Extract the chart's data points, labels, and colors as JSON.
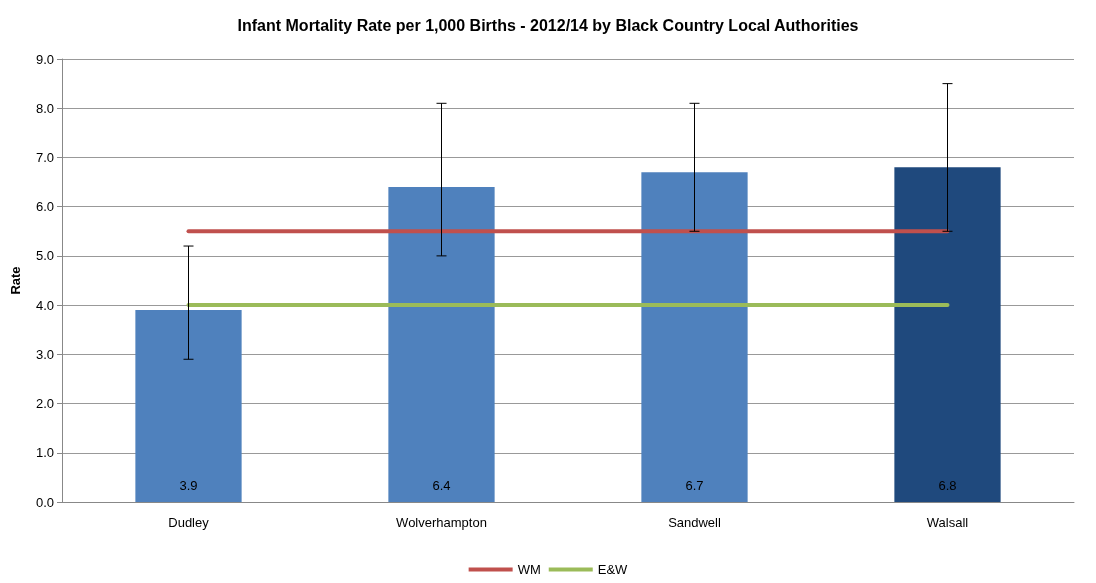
{
  "chart_data": {
    "type": "bar",
    "title": "Infant Mortality Rate per 1,000 Births - 2012/14 by Black Country Local Authorities",
    "ylabel": "Rate",
    "categories": [
      "Dudley",
      "Wolverhampton",
      "Sandwell",
      "Walsall"
    ],
    "series": [
      {
        "values": [
          3.9,
          6.4,
          6.7,
          6.8
        ],
        "colors": [
          "#4f81bd",
          "#4f81bd",
          "#4f81bd",
          "#1f497d"
        ],
        "errors": [
          [
            2.9,
            5.2
          ],
          [
            5.0,
            8.1
          ],
          [
            5.5,
            8.1
          ],
          [
            5.5,
            8.5
          ]
        ],
        "data_labels": true
      },
      {
        "type": "line",
        "name": "WM",
        "color": "#c0504d",
        "values": [
          5.5,
          5.5,
          5.5,
          5.5
        ],
        "marker": "none",
        "line_style": "solid"
      },
      {
        "type": "line",
        "name": "E&W",
        "color": "#9bbb59",
        "values": [
          4.0,
          4.0,
          4.0,
          4.0
        ],
        "marker": "none",
        "line_style": "solid"
      }
    ],
    "ylim": [
      0,
      9
    ],
    "yticks": [
      {
        "value": 0,
        "label": "0.0"
      },
      {
        "value": 1,
        "label": "1.0"
      },
      {
        "value": 2,
        "label": "2.0"
      },
      {
        "value": 3,
        "label": "3.0"
      },
      {
        "value": 4,
        "label": "4.0"
      },
      {
        "value": 5,
        "label": "5.0"
      },
      {
        "value": 6,
        "label": "6.0"
      },
      {
        "value": 7,
        "label": "7.0"
      },
      {
        "value": 8,
        "label": "8.0"
      },
      {
        "value": 9,
        "label": "9.0"
      }
    ],
    "grid": "y",
    "legend": "bottom"
  }
}
